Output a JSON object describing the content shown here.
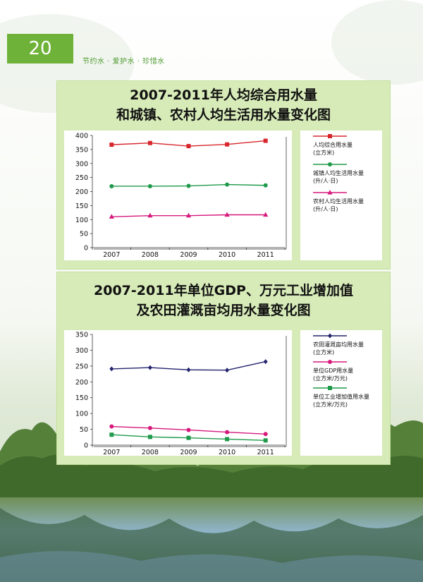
{
  "header": {
    "page_number": "20",
    "slogan": "节约水 · 爱护水 · 珍惜水"
  },
  "chart_data": [
    {
      "type": "line",
      "title_line1": "2007-2011年人均综合用水量",
      "title_line2": "和城镇、农村人均生活用水量变化图",
      "categories": [
        "2007",
        "2008",
        "2009",
        "2010",
        "2011"
      ],
      "y_ticks": [
        "0",
        "50",
        "100",
        "150",
        "200",
        "250",
        "300",
        "350",
        "400"
      ],
      "ylim": [
        0,
        400
      ],
      "grid": false,
      "legend_position": "right",
      "series": [
        {
          "name": "人均综合用水量",
          "unit": "(立方米)",
          "color": "#d7262b",
          "marker": "square",
          "values": [
            367,
            373,
            362,
            368,
            381
          ]
        },
        {
          "name": "城镇人均生活用水量",
          "unit": "(升/人·日)",
          "color": "#1e9a4a",
          "marker": "circle",
          "values": [
            219,
            219,
            220,
            225,
            222
          ]
        },
        {
          "name": "农村人均生活用水量",
          "unit": "(升/人·日)",
          "color": "#d6197d",
          "marker": "triangle",
          "values": [
            110,
            114,
            114,
            117,
            117
          ]
        }
      ]
    },
    {
      "type": "line",
      "title_line1": "2007-2011年单位GDP、万元工业增加值",
      "title_line2": "及农田灌溉亩均用水量变化图",
      "categories": [
        "2007",
        "2008",
        "2009",
        "2010",
        "2011"
      ],
      "y_ticks": [
        "0",
        "50",
        "100",
        "150",
        "200",
        "250",
        "300",
        "350"
      ],
      "ylim": [
        0,
        350
      ],
      "grid": false,
      "legend_position": "right",
      "series": [
        {
          "name": "农田灌溉亩均用水量",
          "unit": "(立方米)",
          "color": "#23236e",
          "marker": "diamond",
          "values": [
            241,
            245,
            238,
            237,
            264
          ]
        },
        {
          "name": "单位GDP用水量",
          "unit": "(立方米/万元)",
          "color": "#d6197d",
          "marker": "circle",
          "values": [
            59,
            54,
            48,
            41,
            35
          ]
        },
        {
          "name": "单位工业增加值用水量",
          "unit": "(立方米/万元)",
          "color": "#1e9a4a",
          "marker": "square",
          "values": [
            33,
            26,
            23,
            19,
            15
          ]
        }
      ]
    }
  ]
}
